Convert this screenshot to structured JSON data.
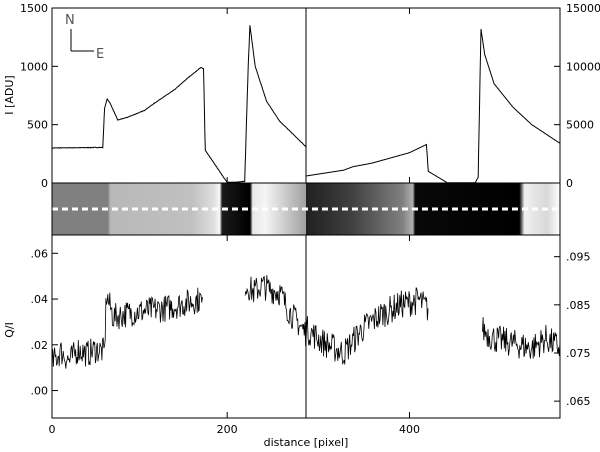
{
  "chart_data": [
    {
      "type": "line",
      "panel": "top-left",
      "ylabel": "I [ADU]",
      "ylim": [
        0,
        1500
      ],
      "yticks": [
        "0",
        "500",
        "1000",
        "1500"
      ],
      "xlim": [
        0,
        290
      ],
      "compass": {
        "north": "N",
        "east": "E"
      },
      "x": [
        0,
        58,
        60,
        63,
        66,
        75,
        85,
        105,
        120,
        140,
        155,
        165,
        170,
        173,
        175,
        200,
        215,
        220,
        224,
        226,
        232,
        245,
        260,
        275,
        290
      ],
      "values": [
        300,
        305,
        640,
        720,
        690,
        540,
        560,
        620,
        700,
        800,
        900,
        960,
        990,
        980,
        280,
        5,
        10,
        15,
        1000,
        1350,
        1000,
        700,
        530,
        420,
        310
      ]
    },
    {
      "type": "line",
      "panel": "top-right",
      "ylim": [
        0,
        15000
      ],
      "yticks": [
        "0",
        "5000",
        "10000",
        "15000"
      ],
      "xlim": [
        290,
        560
      ],
      "x": [
        290,
        330,
        340,
        360,
        400,
        418,
        420,
        440,
        460,
        470,
        473,
        476,
        480,
        490,
        510,
        530,
        560
      ],
      "values": [
        600,
        1100,
        1400,
        1700,
        2600,
        3300,
        1000,
        30,
        30,
        30,
        500,
        13200,
        11000,
        8500,
        6500,
        5000,
        3400
      ]
    },
    {
      "type": "line",
      "panel": "bottom-left",
      "ylabel": "Q/I",
      "ylim": [
        -0.012,
        0.068
      ],
      "yticks": [
        ".00",
        ".02",
        ".04",
        ".06"
      ],
      "xlim": [
        0,
        290
      ],
      "x": [
        0,
        10,
        20,
        30,
        40,
        50,
        60,
        62,
        70,
        90,
        110,
        130,
        150,
        170,
        172,
        174,
        210,
        220,
        230,
        240,
        250,
        260,
        270,
        280,
        290
      ],
      "values": [
        0.012,
        0.017,
        0.013,
        0.018,
        0.016,
        0.018,
        0.017,
        0.042,
        0.032,
        0.034,
        0.035,
        0.036,
        0.038,
        0.04,
        0.035,
        null,
        null,
        0.047,
        0.043,
        0.046,
        0.044,
        0.043,
        0.035,
        0.03,
        0.025
      ]
    },
    {
      "type": "line",
      "panel": "bottom-right",
      "ylim": [
        0.0615,
        0.0995
      ],
      "yticks": [
        ".065",
        ".075",
        ".085",
        ".095"
      ],
      "xlim": [
        290,
        560
      ],
      "x": [
        290,
        310,
        330,
        350,
        370,
        390,
        410,
        420,
        422,
        475,
        477,
        490,
        510,
        530,
        545,
        560
      ],
      "values": [
        0.08,
        0.077,
        0.075,
        0.08,
        0.083,
        0.085,
        0.086,
        0.084,
        null,
        null,
        0.08,
        0.078,
        0.077,
        0.076,
        0.078,
        0.076
      ]
    },
    {
      "type": "image",
      "panel": "slit-strip",
      "description": "intensity strip with dotted slit line"
    }
  ],
  "axis": {
    "xlabel": "distance [pixel]",
    "xticks": [
      0,
      200,
      400
    ],
    "xlim": [
      0,
      560
    ]
  }
}
